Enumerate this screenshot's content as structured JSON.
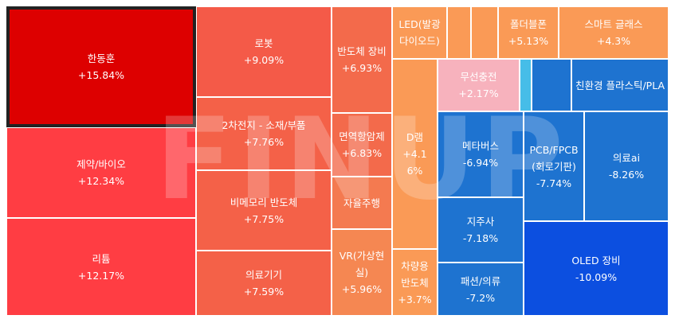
{
  "watermark": "FINUP",
  "chart_data": {
    "type": "treemap",
    "unit": "%",
    "selected": "한동훈",
    "items": [
      {
        "name": "한동훈",
        "change": "+15.84%",
        "value": 15.84,
        "color": "#dd0000"
      },
      {
        "name": "제약/바이오",
        "change": "+12.34%",
        "value": 12.34,
        "color": "#ff3d43"
      },
      {
        "name": "리튬",
        "change": "+12.17%",
        "value": 12.17,
        "color": "#ff3d43"
      },
      {
        "name": "로봇",
        "change": "+9.09%",
        "value": 9.09,
        "color": "#f45a48"
      },
      {
        "name": "2차전지 - 소재/부품",
        "change": "+7.76%",
        "value": 7.76,
        "color": "#f46148"
      },
      {
        "name": "비메모리 반도체",
        "change": "+7.75%",
        "value": 7.75,
        "color": "#f46148"
      },
      {
        "name": "의료기기",
        "change": "+7.59%",
        "value": 7.59,
        "color": "#f46148"
      },
      {
        "name": "반도체 장비",
        "change": "+6.93%",
        "value": 6.93,
        "color": "#f36a4b"
      },
      {
        "name": "면역항암제",
        "change": "+6.83%",
        "value": 6.83,
        "color": "#f36a4b"
      },
      {
        "name": "자율주행",
        "change": "",
        "value": null,
        "color": "#f47a50"
      },
      {
        "name": "VR(가상현실)",
        "change": "+5.96%",
        "value": 5.96,
        "color": "#f58752"
      },
      {
        "name": "LED(발광다이오드)",
        "change": "",
        "value": null,
        "color": "#fa9a56"
      },
      {
        "name": "",
        "change": "",
        "value": null,
        "color": "#fa9a56"
      },
      {
        "name": "",
        "change": "",
        "value": null,
        "color": "#fa9a56"
      },
      {
        "name": "폴더블폰",
        "change": "+5.13%",
        "value": 5.13,
        "color": "#fa9a56"
      },
      {
        "name": "스마트 글래스",
        "change": "+4.3%",
        "value": 4.3,
        "color": "#fa9a56"
      },
      {
        "name": "D램",
        "change": "+4.16%",
        "value": 4.16,
        "color": "#fa9a56"
      },
      {
        "name": "차량용 반도체",
        "change": "+3.7%",
        "value": 3.7,
        "color": "#fa9a56"
      },
      {
        "name": "무선충전",
        "change": "+2.17%",
        "value": 2.17,
        "color": "#f7b2bd"
      },
      {
        "name": "",
        "change": "",
        "value": null,
        "color": "#46bde8"
      },
      {
        "name": "",
        "change": "",
        "value": null,
        "color": "#1e73d0"
      },
      {
        "name": "친환경 플라스틱/PLA",
        "change": "",
        "value": null,
        "color": "#1e73d0"
      },
      {
        "name": "메타버스",
        "change": "-6.94%",
        "value": -6.94,
        "color": "#1e73d0"
      },
      {
        "name": "PCB/FPCB(회로기판)",
        "change": "-7.74%",
        "value": -7.74,
        "color": "#1e73d0"
      },
      {
        "name": "의료ai",
        "change": "-8.26%",
        "value": -8.26,
        "color": "#1e73d0"
      },
      {
        "name": "지주사",
        "change": "-7.18%",
        "value": -7.18,
        "color": "#1e73d0"
      },
      {
        "name": "패션/의류",
        "change": "-7.2%",
        "value": -7.2,
        "color": "#1e73d0"
      },
      {
        "name": "OLED 장비",
        "change": "-10.09%",
        "value": -10.09,
        "color": "#0c4fe0"
      }
    ]
  }
}
